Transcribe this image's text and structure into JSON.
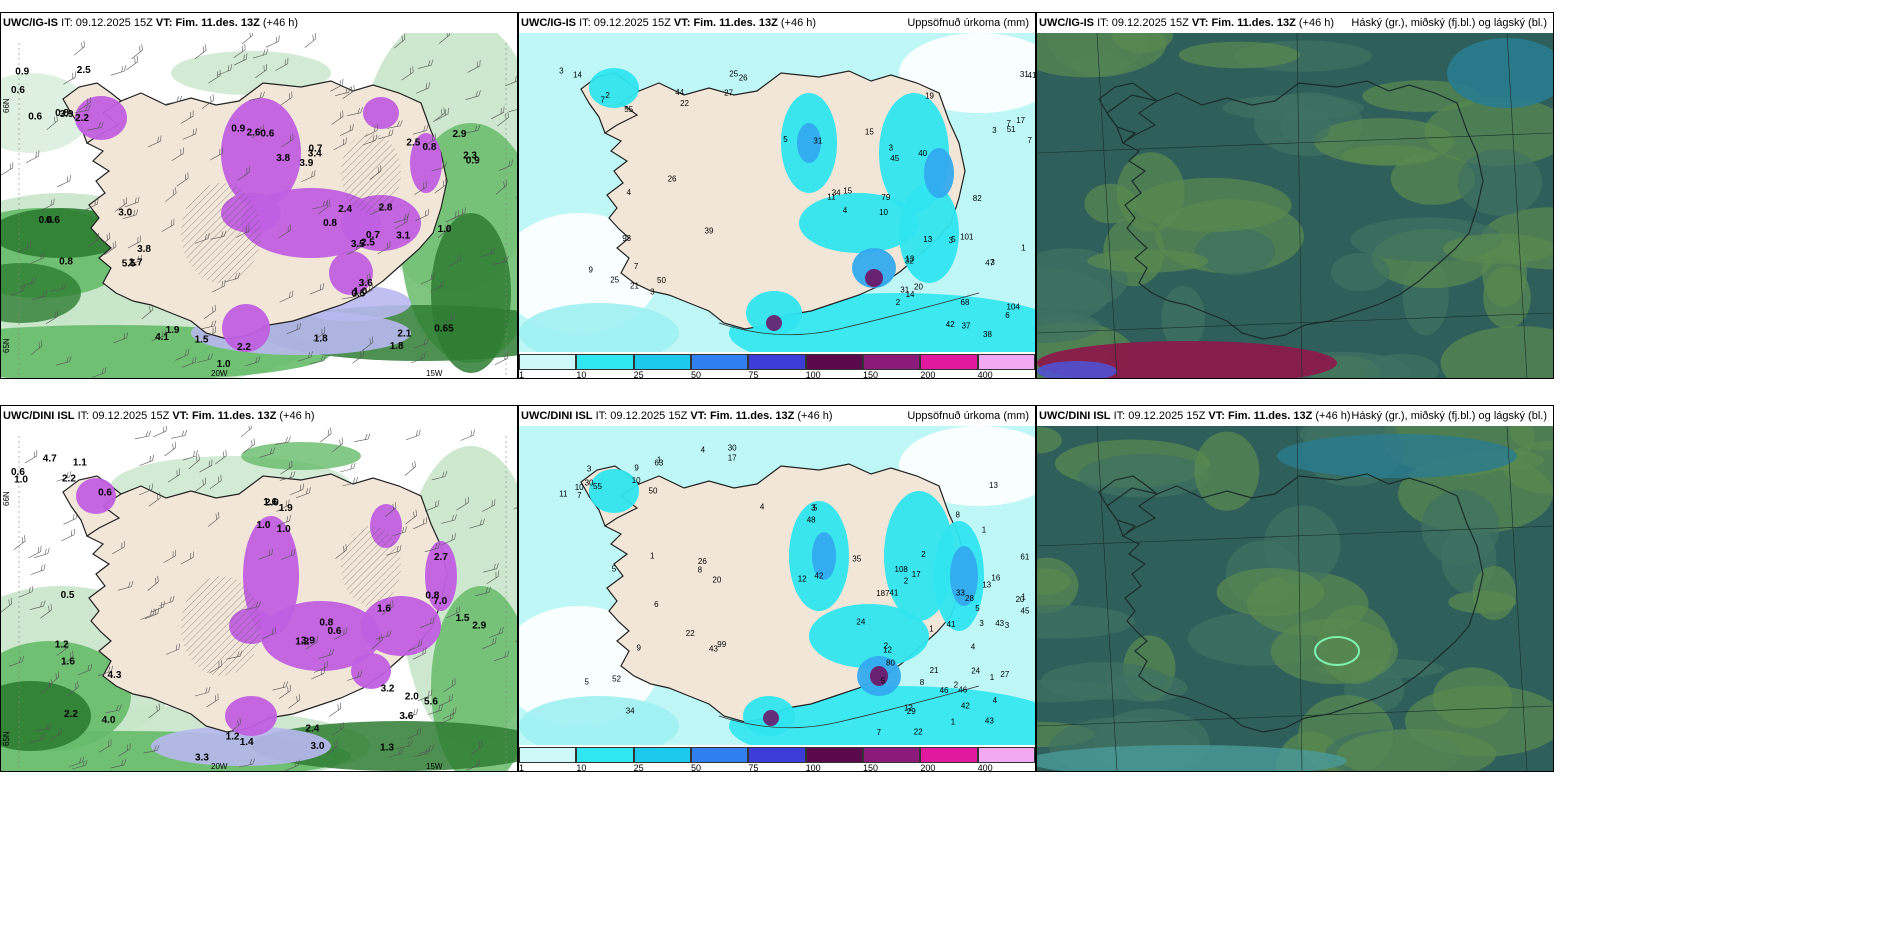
{
  "panels": [
    {
      "id": "p1",
      "kind": "precip_type",
      "model": "UWC/IG-IS",
      "it_label": "IT:",
      "it": "09.12.2025 15Z",
      "vt_label": "VT:",
      "vt": "Fim. 11.des. 13Z",
      "lead": "(+46 h)",
      "right_title": "",
      "labels": [
        "0.6",
        "0.6",
        "0.6",
        "0.7",
        "0.9",
        "0.65",
        "1.0",
        "0.9",
        "0.8",
        "3.9",
        "2.8",
        "2.9",
        "3.6",
        "1.5",
        "2.2",
        "2.7",
        "3.4",
        "3.1",
        "2.5",
        "1.8",
        "1.9",
        "0.6",
        "0.6",
        "0.9",
        "3.5",
        "2.3",
        "2.1",
        "2.2",
        "2.5",
        "5.5",
        "3.8",
        "2.4",
        "0.8",
        "0.5",
        "4.1",
        "3.9",
        "3.0",
        "2.6",
        "2.5",
        "1.0",
        "1.0",
        "1.8",
        "0.8",
        "3.8",
        "0.7",
        "0.8"
      ],
      "grid_labels": [
        "20W",
        "15W",
        "66N",
        "65N"
      ]
    },
    {
      "id": "p2",
      "kind": "accum",
      "model": "UWC/IG-IS",
      "it_label": "IT:",
      "it": "09.12.2025 15Z",
      "vt_label": "VT:",
      "vt": "Fim. 11.des. 13Z",
      "lead": "(+46 h)",
      "right_title": "Uppsöfnuð úrkoma (mm)",
      "labels": [
        "3",
        "3",
        "5",
        "4",
        "2",
        "3",
        "26",
        "40",
        "13",
        "25",
        "37",
        "31",
        "14",
        "15",
        "32",
        "26",
        "68",
        "3",
        "27",
        "34",
        "13",
        "93",
        "31",
        "1",
        "55",
        "15",
        "101",
        "3",
        "42",
        "51",
        "7",
        "45",
        "11",
        "39",
        "14",
        "7",
        "22",
        "79",
        "3",
        "9",
        "38",
        "47",
        "44",
        "31",
        "82",
        "50",
        "104",
        "41",
        "2",
        "5",
        "4",
        "7",
        "6",
        "7",
        "25",
        "19",
        "10",
        "21",
        "20",
        "17"
      ],
      "legend": [
        "1",
        "10",
        "25",
        "50",
        "75",
        "100",
        "150",
        "200",
        "400"
      ]
    },
    {
      "id": "p3",
      "kind": "cloud",
      "model": "UWC/IG-IS",
      "it_label": "IT:",
      "it": "09.12.2025 15Z",
      "vt_label": "VT:",
      "vt": "Fim. 11.des. 13Z",
      "lead": "(+46 h)",
      "right_title": "Háský (gr.), miðský (fj.bl.) og lágský (bl.)",
      "labels": []
    },
    {
      "id": "p4",
      "kind": "precip_type",
      "model": "UWC/DINI ISL",
      "it_label": "IT:",
      "it": "09.12.2025 15Z",
      "vt_label": "VT:",
      "vt": "Fim. 11.des. 13Z",
      "lead": "(+46 h)",
      "right_title": "",
      "labels": [
        "0.6",
        "0.5",
        "1.0",
        "0.8",
        "1.5",
        "1.3",
        "3.0",
        "2.2",
        "1.2",
        "1.6",
        "1.2",
        "0.8",
        "2.0",
        "1.2",
        "0.6",
        "4.3",
        "1.9",
        "0.6",
        "2.7",
        "3.6",
        "2.4",
        "1.1",
        "1.6",
        "1.0",
        "3.9",
        "2.9",
        "3.2",
        "3.3",
        "4.7",
        "4.0",
        "2.0",
        "1.6",
        "7.0",
        "5.6",
        "1.4",
        "1.0",
        "2.2"
      ],
      "grid_labels": [
        "20W",
        "15W",
        "66N",
        "65N"
      ]
    },
    {
      "id": "p5",
      "kind": "accum",
      "model": "UWC/DINI ISL",
      "it_label": "IT:",
      "it": "09.12.2025 15Z",
      "vt_label": "VT:",
      "vt": "Fim. 11.des. 13Z",
      "lead": "(+46 h)",
      "right_title": "Uppsöfnuð úrkoma (mm)",
      "labels": [
        "11",
        "4",
        "4",
        "5",
        "5",
        "3",
        "4",
        "2",
        "2",
        "1",
        "1",
        "3",
        "3",
        "42",
        "41",
        "43",
        "46",
        "16",
        "30",
        "12",
        "24",
        "5",
        "42",
        "1",
        "1",
        "33",
        "12",
        "34",
        "43",
        "61",
        "9",
        "35",
        "41",
        "20",
        "29",
        "13",
        "17",
        "108",
        "1",
        "6",
        "46",
        "27",
        "30",
        "3",
        "24",
        "99",
        "2",
        "13",
        "10",
        "48",
        "187",
        "26",
        "4",
        "1",
        "7",
        "8",
        "28",
        "52",
        "8",
        "43",
        "55",
        "5",
        "80",
        "9",
        "12",
        "45",
        "63",
        "2",
        "5",
        "8",
        "7",
        "1",
        "50",
        "17",
        "21",
        "22",
        "22",
        "20",
        "10"
      ],
      "legend": [
        "1",
        "10",
        "25",
        "50",
        "75",
        "100",
        "150",
        "200",
        "400"
      ]
    },
    {
      "id": "p6",
      "kind": "cloud",
      "model": "UWC/DINI ISL",
      "it_label": "IT:",
      "it": "09.12.2025 15Z",
      "vt_label": "VT:",
      "vt": "Fim. 11.des. 13Z",
      "lead": "(+46 h)",
      "right_title": "Háský (gr.), miðský (fj.bl.) og lágský (bl.)",
      "labels": []
    }
  ],
  "colors": {
    "land": "#f2e6d8",
    "sea_accum": "#bff7f7",
    "sea_light": "#9ef0f2",
    "cyan": "#2fe5ef",
    "blue": "#33aaee",
    "dark_green": "#2e7d32",
    "mid_green": "#66bb6a",
    "light_green": "#c8e6c9",
    "magenta": "#c05fe0",
    "lavender": "#b8b8f0",
    "cloud_base": "#2f5f5a",
    "cloud_mid": "#3e7263",
    "cloud_high": "#5a8a50",
    "cloud_teal": "#2a7c90"
  },
  "legend_colors": [
    "#cff9f9",
    "#30e6f0",
    "#1cc8ec",
    "#2f7ff0",
    "#3c3cd8",
    "#5a0a4a",
    "#8c1a7a",
    "#e0199e",
    "#f2a8f2"
  ]
}
